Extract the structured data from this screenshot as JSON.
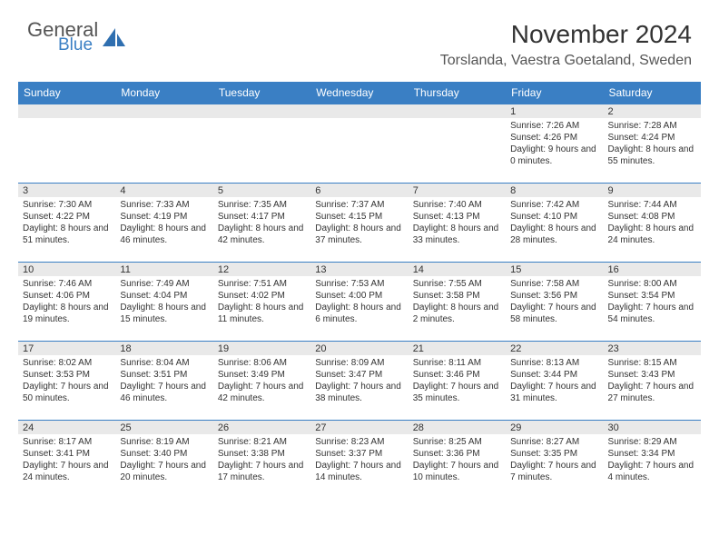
{
  "logo": {
    "general": "General",
    "blue": "Blue"
  },
  "title": "November 2024",
  "location": "Torslanda, Vaestra Goetaland, Sweden",
  "colors": {
    "header_bg": "#3a7fc4",
    "header_text": "#ffffff",
    "daybar_bg": "#e9e9e9",
    "daybar_border": "#3a7fc4",
    "body_text": "#333333"
  },
  "dayNames": [
    "Sunday",
    "Monday",
    "Tuesday",
    "Wednesday",
    "Thursday",
    "Friday",
    "Saturday"
  ],
  "weeks": [
    [
      null,
      null,
      null,
      null,
      null,
      {
        "n": "1",
        "sr": "7:26 AM",
        "ss": "4:26 PM",
        "dl": "9 hours and 0 minutes."
      },
      {
        "n": "2",
        "sr": "7:28 AM",
        "ss": "4:24 PM",
        "dl": "8 hours and 55 minutes."
      }
    ],
    [
      {
        "n": "3",
        "sr": "7:30 AM",
        "ss": "4:22 PM",
        "dl": "8 hours and 51 minutes."
      },
      {
        "n": "4",
        "sr": "7:33 AM",
        "ss": "4:19 PM",
        "dl": "8 hours and 46 minutes."
      },
      {
        "n": "5",
        "sr": "7:35 AM",
        "ss": "4:17 PM",
        "dl": "8 hours and 42 minutes."
      },
      {
        "n": "6",
        "sr": "7:37 AM",
        "ss": "4:15 PM",
        "dl": "8 hours and 37 minutes."
      },
      {
        "n": "7",
        "sr": "7:40 AM",
        "ss": "4:13 PM",
        "dl": "8 hours and 33 minutes."
      },
      {
        "n": "8",
        "sr": "7:42 AM",
        "ss": "4:10 PM",
        "dl": "8 hours and 28 minutes."
      },
      {
        "n": "9",
        "sr": "7:44 AM",
        "ss": "4:08 PM",
        "dl": "8 hours and 24 minutes."
      }
    ],
    [
      {
        "n": "10",
        "sr": "7:46 AM",
        "ss": "4:06 PM",
        "dl": "8 hours and 19 minutes."
      },
      {
        "n": "11",
        "sr": "7:49 AM",
        "ss": "4:04 PM",
        "dl": "8 hours and 15 minutes."
      },
      {
        "n": "12",
        "sr": "7:51 AM",
        "ss": "4:02 PM",
        "dl": "8 hours and 11 minutes."
      },
      {
        "n": "13",
        "sr": "7:53 AM",
        "ss": "4:00 PM",
        "dl": "8 hours and 6 minutes."
      },
      {
        "n": "14",
        "sr": "7:55 AM",
        "ss": "3:58 PM",
        "dl": "8 hours and 2 minutes."
      },
      {
        "n": "15",
        "sr": "7:58 AM",
        "ss": "3:56 PM",
        "dl": "7 hours and 58 minutes."
      },
      {
        "n": "16",
        "sr": "8:00 AM",
        "ss": "3:54 PM",
        "dl": "7 hours and 54 minutes."
      }
    ],
    [
      {
        "n": "17",
        "sr": "8:02 AM",
        "ss": "3:53 PM",
        "dl": "7 hours and 50 minutes."
      },
      {
        "n": "18",
        "sr": "8:04 AM",
        "ss": "3:51 PM",
        "dl": "7 hours and 46 minutes."
      },
      {
        "n": "19",
        "sr": "8:06 AM",
        "ss": "3:49 PM",
        "dl": "7 hours and 42 minutes."
      },
      {
        "n": "20",
        "sr": "8:09 AM",
        "ss": "3:47 PM",
        "dl": "7 hours and 38 minutes."
      },
      {
        "n": "21",
        "sr": "8:11 AM",
        "ss": "3:46 PM",
        "dl": "7 hours and 35 minutes."
      },
      {
        "n": "22",
        "sr": "8:13 AM",
        "ss": "3:44 PM",
        "dl": "7 hours and 31 minutes."
      },
      {
        "n": "23",
        "sr": "8:15 AM",
        "ss": "3:43 PM",
        "dl": "7 hours and 27 minutes."
      }
    ],
    [
      {
        "n": "24",
        "sr": "8:17 AM",
        "ss": "3:41 PM",
        "dl": "7 hours and 24 minutes."
      },
      {
        "n": "25",
        "sr": "8:19 AM",
        "ss": "3:40 PM",
        "dl": "7 hours and 20 minutes."
      },
      {
        "n": "26",
        "sr": "8:21 AM",
        "ss": "3:38 PM",
        "dl": "7 hours and 17 minutes."
      },
      {
        "n": "27",
        "sr": "8:23 AM",
        "ss": "3:37 PM",
        "dl": "7 hours and 14 minutes."
      },
      {
        "n": "28",
        "sr": "8:25 AM",
        "ss": "3:36 PM",
        "dl": "7 hours and 10 minutes."
      },
      {
        "n": "29",
        "sr": "8:27 AM",
        "ss": "3:35 PM",
        "dl": "7 hours and 7 minutes."
      },
      {
        "n": "30",
        "sr": "8:29 AM",
        "ss": "3:34 PM",
        "dl": "7 hours and 4 minutes."
      }
    ]
  ],
  "labels": {
    "sunrise": "Sunrise:",
    "sunset": "Sunset:",
    "daylight": "Daylight:"
  }
}
